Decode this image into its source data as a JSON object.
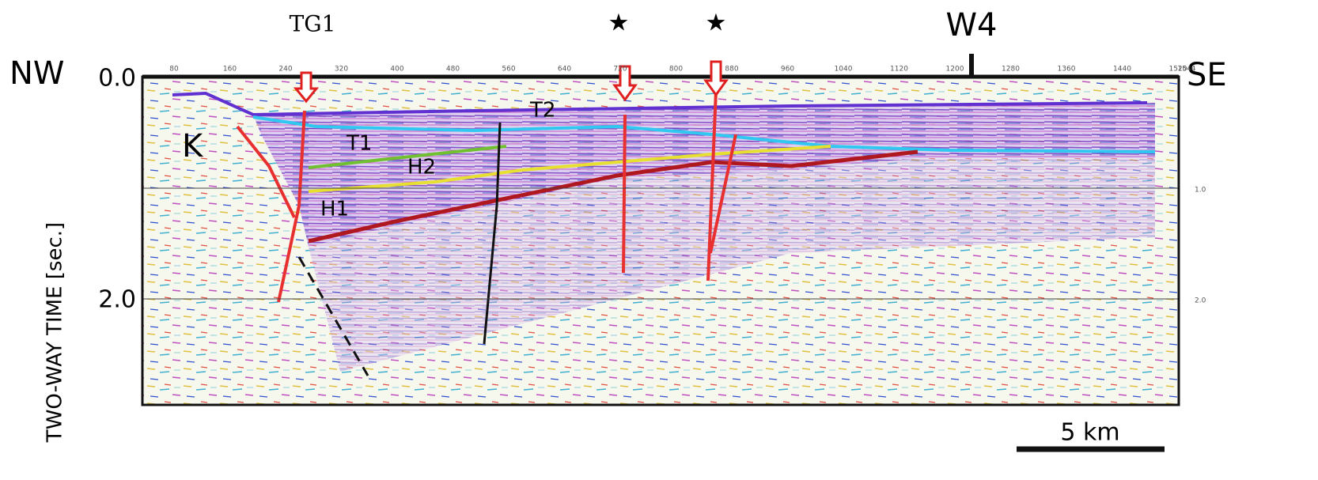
{
  "labels": {
    "tg1": "TG1",
    "w4": "W4",
    "nw": "NW",
    "se": "SE",
    "k": "K",
    "t1": "T1",
    "t2": "T2",
    "h1": "H1",
    "h2": "H2",
    "y_axis": "TWO-WAY TIME [sec.]",
    "scale": "5 km"
  },
  "top_ticks": [
    "80",
    "160",
    "240",
    "320",
    "400",
    "480",
    "560",
    "640",
    "720",
    "800",
    "880",
    "960",
    "1040",
    "1120",
    "1200",
    "1280",
    "1360",
    "1440",
    "1520"
  ],
  "top_end": "1544",
  "left_ticks": [
    "0.0",
    "2.0"
  ],
  "right_ticks": [
    "1.0",
    "2.0"
  ]
}
